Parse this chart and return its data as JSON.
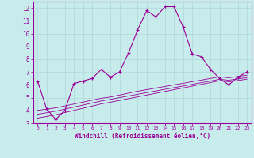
{
  "x": [
    0,
    1,
    2,
    3,
    4,
    5,
    6,
    7,
    8,
    9,
    10,
    11,
    12,
    13,
    14,
    15,
    16,
    17,
    18,
    19,
    20,
    21,
    22,
    23
  ],
  "y_main": [
    6.3,
    4.1,
    3.3,
    4.0,
    6.1,
    6.3,
    6.5,
    7.2,
    6.6,
    7.0,
    8.5,
    10.3,
    11.8,
    11.3,
    12.1,
    12.1,
    10.5,
    8.4,
    8.2,
    7.2,
    6.5,
    6.0,
    6.6,
    7.0
  ],
  "y_reg1": [
    4.0,
    4.1,
    4.2,
    4.35,
    4.5,
    4.65,
    4.8,
    4.95,
    5.05,
    5.2,
    5.35,
    5.5,
    5.62,
    5.75,
    5.87,
    6.0,
    6.12,
    6.25,
    6.37,
    6.5,
    6.62,
    6.55,
    6.65,
    6.75
  ],
  "y_reg2": [
    3.7,
    3.82,
    3.94,
    4.1,
    4.26,
    4.42,
    4.58,
    4.74,
    4.86,
    5.0,
    5.13,
    5.26,
    5.39,
    5.52,
    5.65,
    5.78,
    5.91,
    6.04,
    6.17,
    6.3,
    6.43,
    6.36,
    6.46,
    6.56
  ],
  "y_reg3": [
    3.4,
    3.53,
    3.66,
    3.83,
    4.0,
    4.17,
    4.34,
    4.51,
    4.64,
    4.78,
    4.92,
    5.06,
    5.2,
    5.34,
    5.48,
    5.62,
    5.76,
    5.9,
    6.04,
    6.18,
    6.32,
    6.24,
    6.34,
    6.44
  ],
  "line_color": "#990099",
  "bg_color": "#c8ecec",
  "grid_color": "#b0d8d8",
  "xlabel": "Windchill (Refroidissement éolien,°C)",
  "xlim": [
    -0.5,
    23.5
  ],
  "ylim": [
    3,
    12.5
  ],
  "yticks": [
    3,
    4,
    5,
    6,
    7,
    8,
    9,
    10,
    11,
    12
  ],
  "xticks": [
    0,
    1,
    2,
    3,
    4,
    5,
    6,
    7,
    8,
    9,
    10,
    11,
    12,
    13,
    14,
    15,
    16,
    17,
    18,
    19,
    20,
    21,
    22,
    23
  ]
}
